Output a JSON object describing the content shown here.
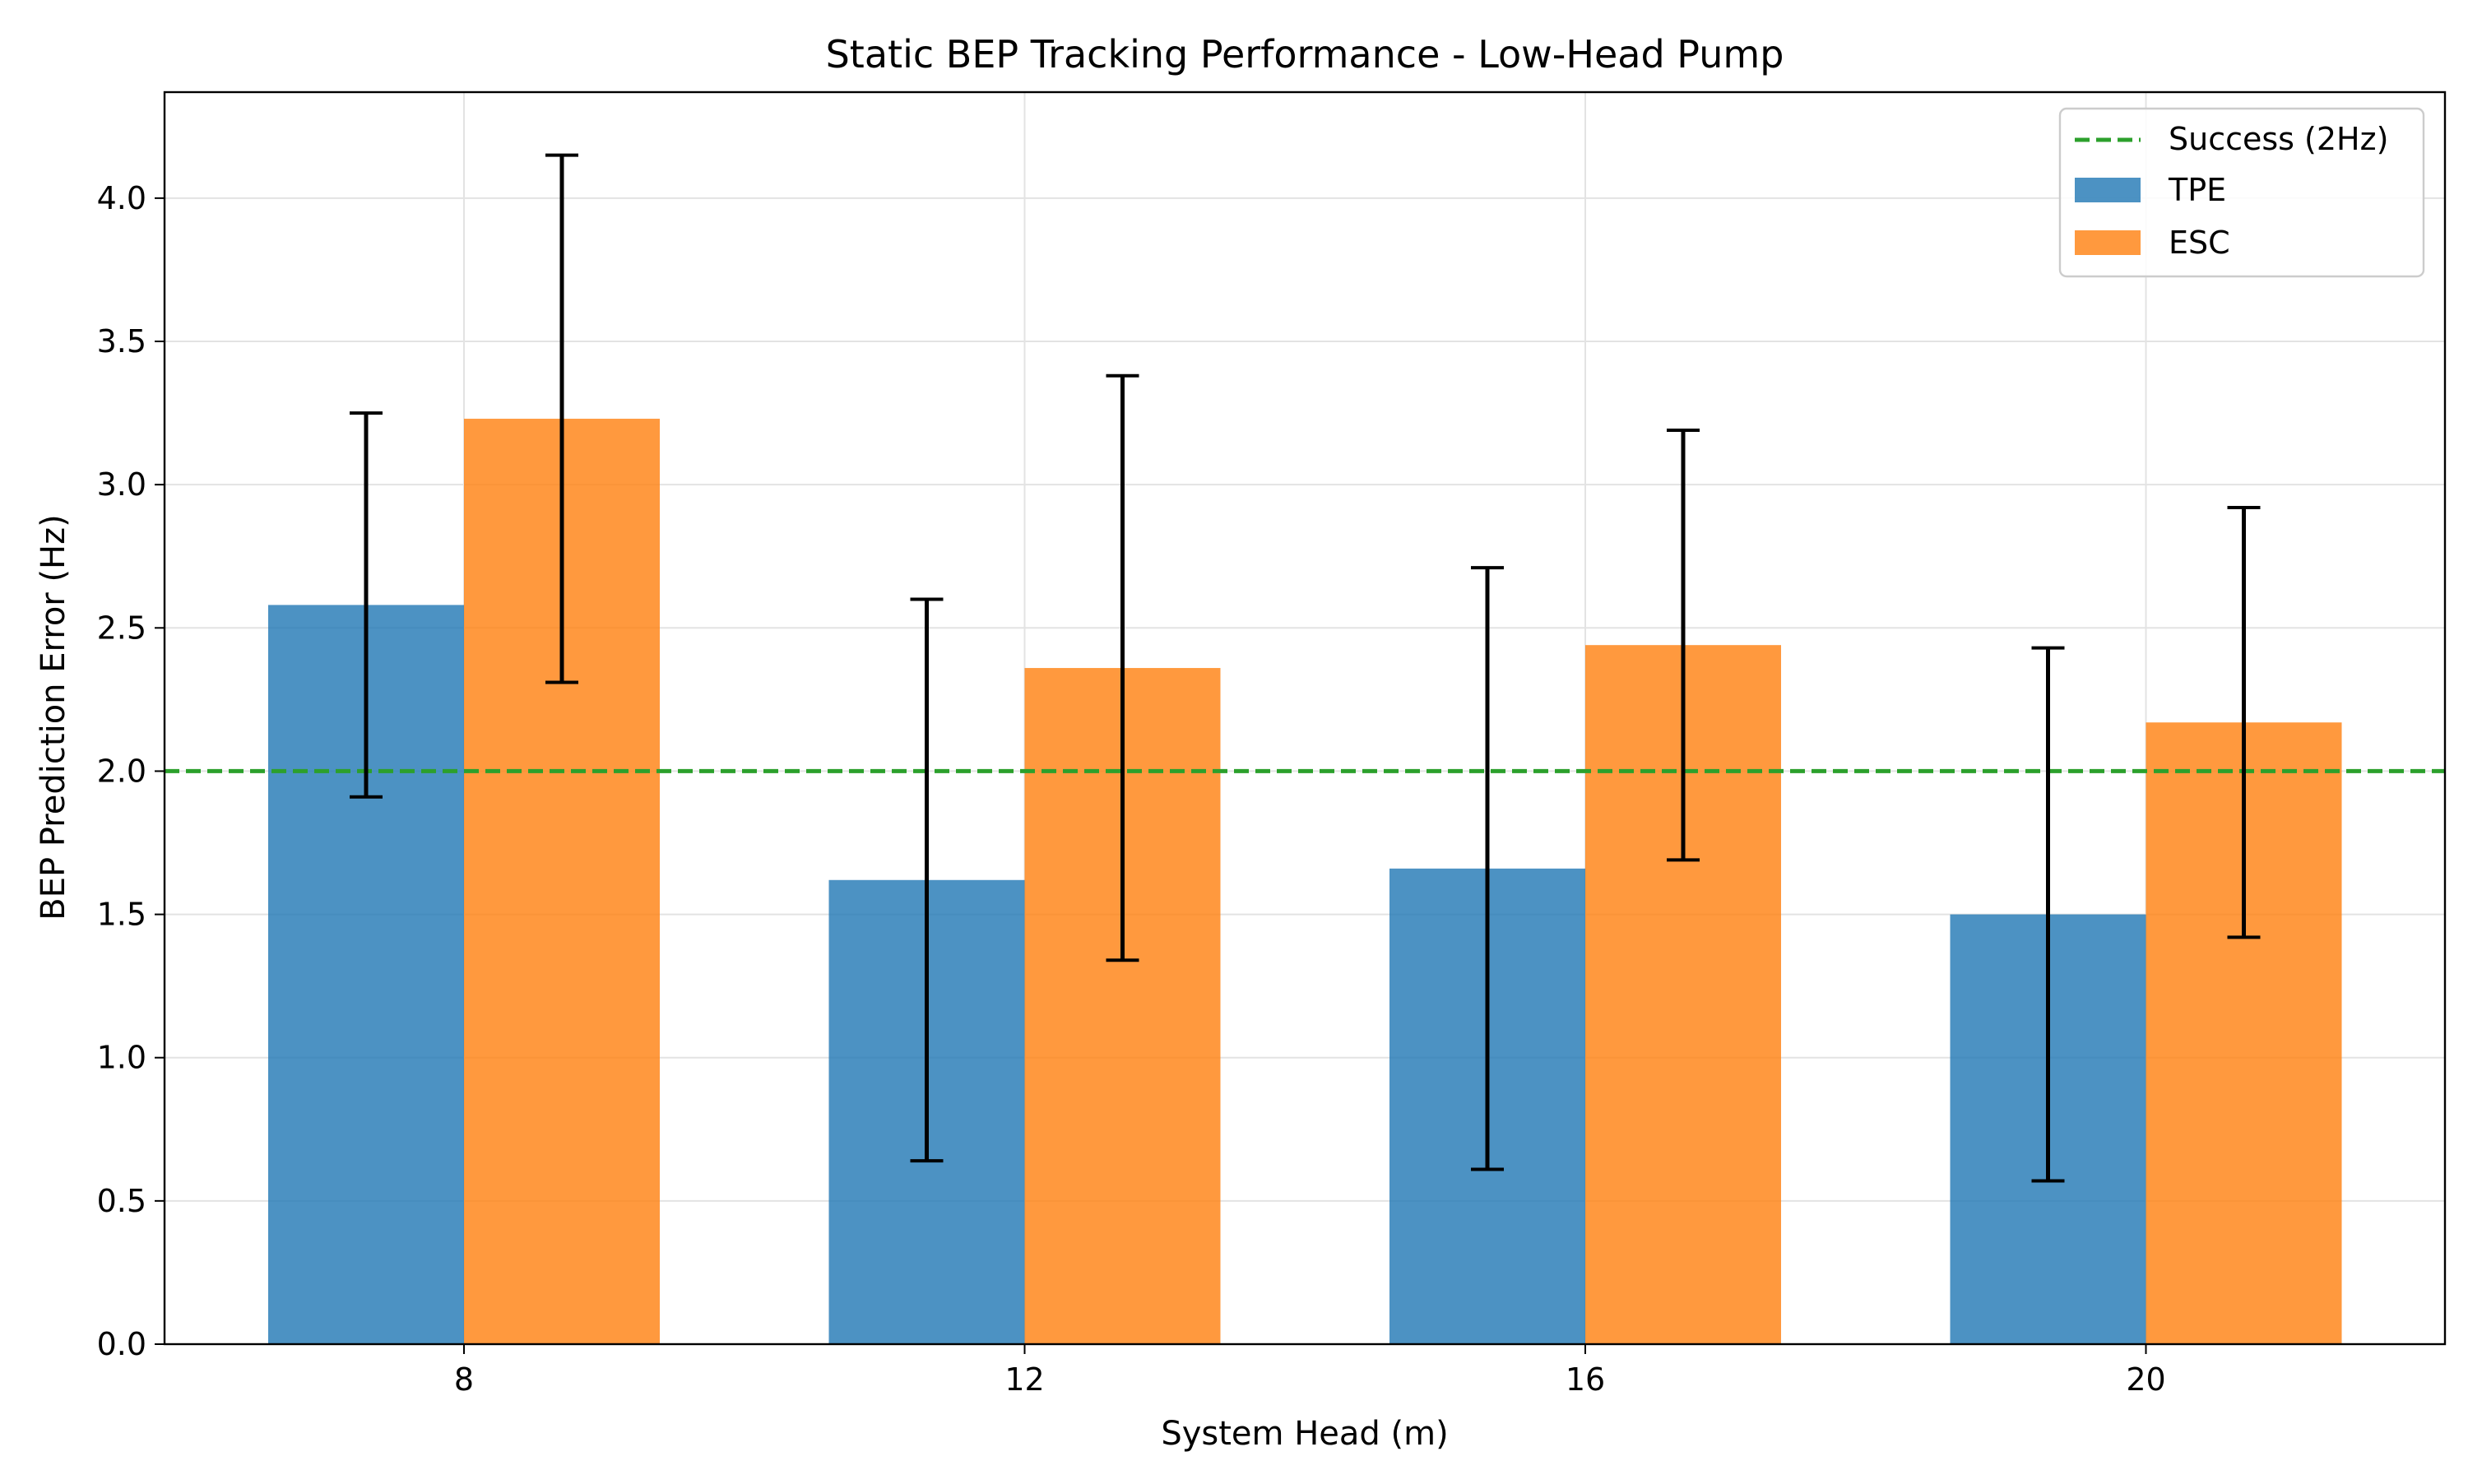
{
  "chart_data": {
    "type": "bar",
    "title": "Static BEP Tracking Performance - Low-Head Pump",
    "xlabel": "System Head (m)",
    "ylabel": "BEP Prediction Error (Hz)",
    "categories": [
      "8",
      "12",
      "16",
      "20"
    ],
    "series": [
      {
        "name": "TPE",
        "values": [
          2.58,
          1.62,
          1.66,
          1.5
        ],
        "errors": [
          0.67,
          0.98,
          1.05,
          0.93
        ],
        "color": "#1f77b4"
      },
      {
        "name": "ESC",
        "values": [
          3.23,
          2.36,
          2.44,
          2.17
        ],
        "errors": [
          0.92,
          1.02,
          0.75,
          0.75
        ],
        "color": "#ff7f0e"
      }
    ],
    "reference_line": {
      "name": "Success (2Hz)",
      "value": 2.0,
      "color": "#2ca02c",
      "style": "dashed"
    },
    "ylim": [
      0,
      4.37
    ],
    "yticks": [
      "0.0",
      "0.5",
      "1.0",
      "1.5",
      "2.0",
      "2.5",
      "3.0",
      "3.5",
      "4.0"
    ],
    "grid": true,
    "legend_position": "top-right"
  }
}
